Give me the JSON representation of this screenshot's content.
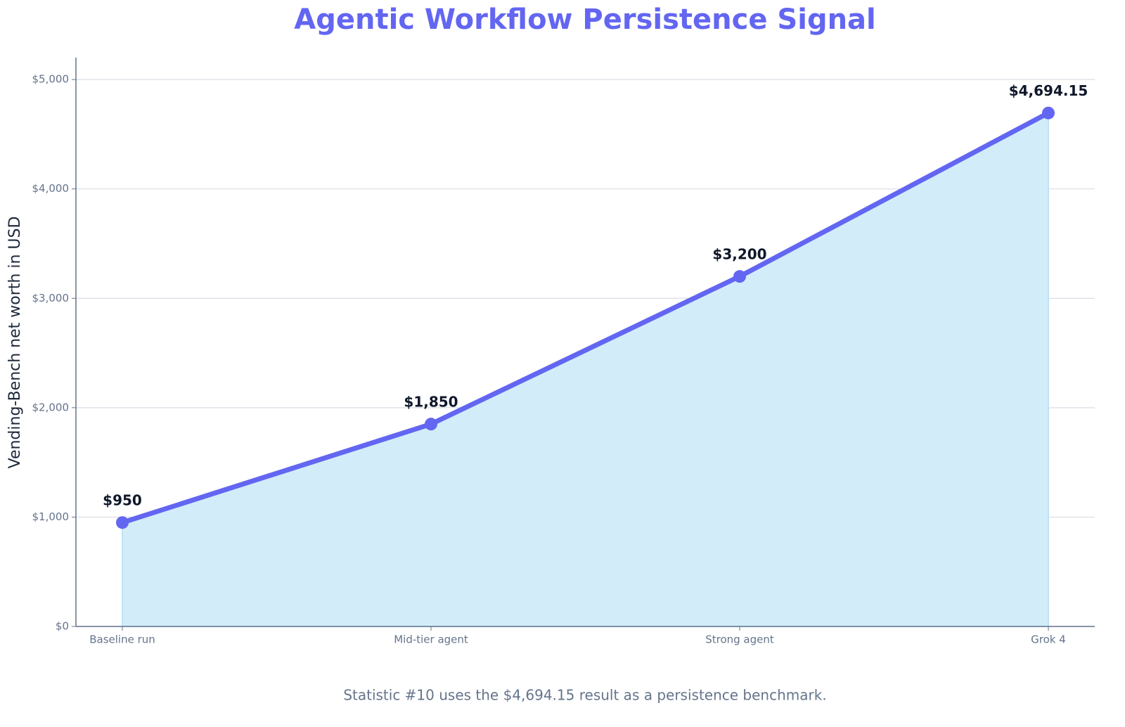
{
  "chart_data": {
    "type": "area-line",
    "title": "Agentic Workflow Persistence Signal",
    "y_label": "Vending-Bench net worth in USD",
    "footnote": "Statistic #10 uses the $4,694.15 result as a persistence benchmark.",
    "categories": [
      "Baseline run",
      "Mid-tier agent",
      "Strong agent",
      "Grok 4"
    ],
    "series": [
      {
        "name": "Vending-Bench net worth",
        "color": "#6366f1",
        "fill": "#d2ecfa",
        "values": [
          950,
          1850,
          3200,
          4694.15
        ],
        "value_labels": [
          "$950",
          "$1,850",
          "$3,200",
          "$4,694.15"
        ]
      }
    ],
    "ylim": [
      0,
      5200
    ],
    "yticks": [
      {
        "value": 0,
        "label": "$0"
      },
      {
        "value": 1000,
        "label": "$1,000"
      },
      {
        "value": 2000,
        "label": "$2,000"
      },
      {
        "value": 3000,
        "label": "$3,000"
      },
      {
        "value": 4000,
        "label": "$4,000"
      },
      {
        "value": 5000,
        "label": "$5,000"
      }
    ],
    "grid": true
  }
}
